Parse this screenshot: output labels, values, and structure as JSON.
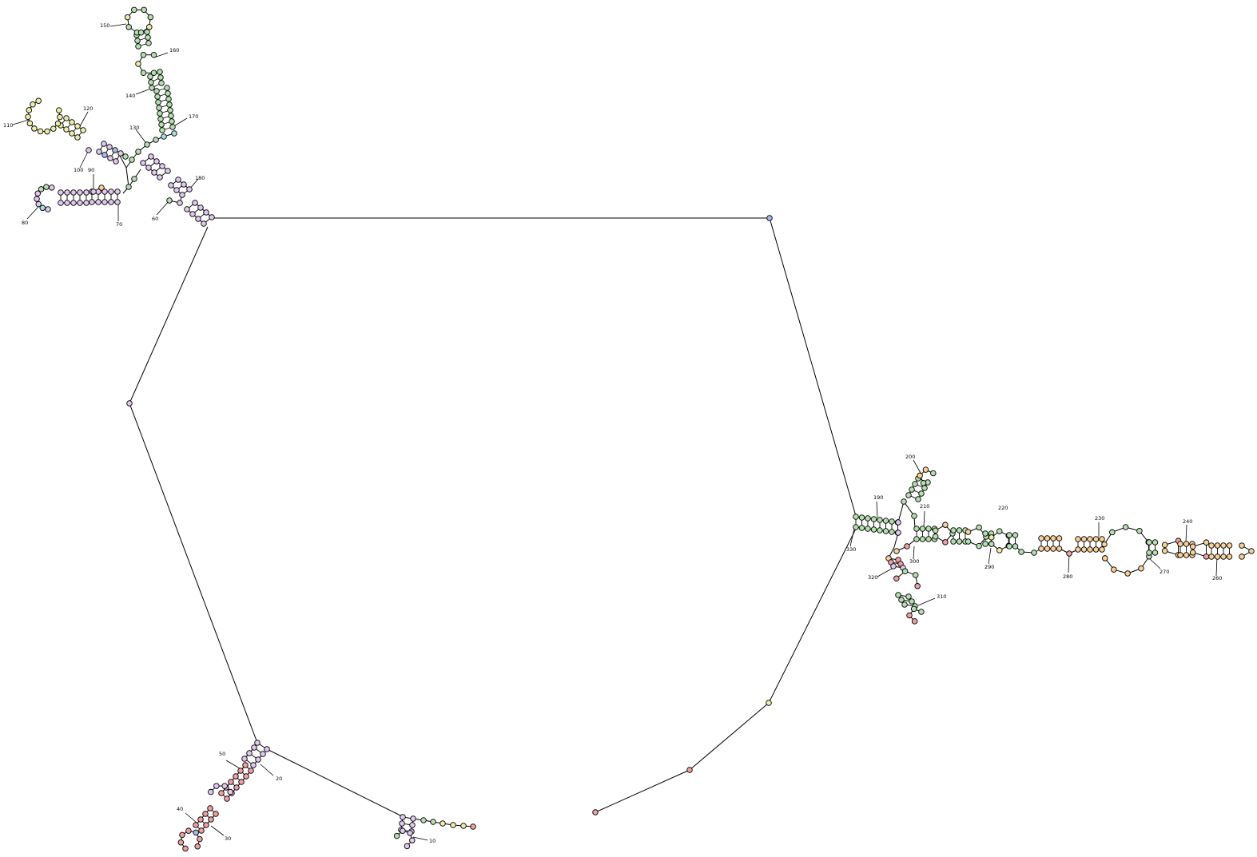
{
  "figure": {
    "type": "rna-secondary-structure",
    "colors": {
      "pink": "#f0a0a0",
      "violet": "#e0c8f0",
      "green": "#b4e0b0",
      "yellow": "#eeeea8",
      "orange": "#f8d098",
      "blue": "#a8b8f0",
      "teal": "#a8e0e0"
    },
    "position_labels": [
      {
        "id": "p10",
        "text": "10"
      },
      {
        "id": "p20",
        "text": "20"
      },
      {
        "id": "p30",
        "text": "30"
      },
      {
        "id": "p40",
        "text": "40"
      },
      {
        "id": "p50",
        "text": "50"
      },
      {
        "id": "p60",
        "text": "60"
      },
      {
        "id": "p70",
        "text": "70"
      },
      {
        "id": "p80",
        "text": "80"
      },
      {
        "id": "p90",
        "text": "90"
      },
      {
        "id": "p100",
        "text": "100"
      },
      {
        "id": "p110",
        "text": "110"
      },
      {
        "id": "p120",
        "text": "120"
      },
      {
        "id": "p130",
        "text": "130"
      },
      {
        "id": "p140",
        "text": "140"
      },
      {
        "id": "p150",
        "text": "150"
      },
      {
        "id": "p160",
        "text": "160"
      },
      {
        "id": "p170",
        "text": "170"
      },
      {
        "id": "p180",
        "text": "180"
      },
      {
        "id": "p190",
        "text": "190"
      },
      {
        "id": "p200",
        "text": "200"
      },
      {
        "id": "p210",
        "text": "210"
      },
      {
        "id": "p220",
        "text": "220"
      },
      {
        "id": "p230",
        "text": "230"
      },
      {
        "id": "p240",
        "text": "240"
      },
      {
        "id": "p260",
        "text": "260"
      },
      {
        "id": "p270",
        "text": "270"
      },
      {
        "id": "p280",
        "text": "280"
      },
      {
        "id": "p290",
        "text": "290"
      },
      {
        "id": "p300",
        "text": "300"
      },
      {
        "id": "p310",
        "text": "310"
      },
      {
        "id": "p320",
        "text": "320"
      },
      {
        "id": "p330",
        "text": "330"
      }
    ]
  }
}
